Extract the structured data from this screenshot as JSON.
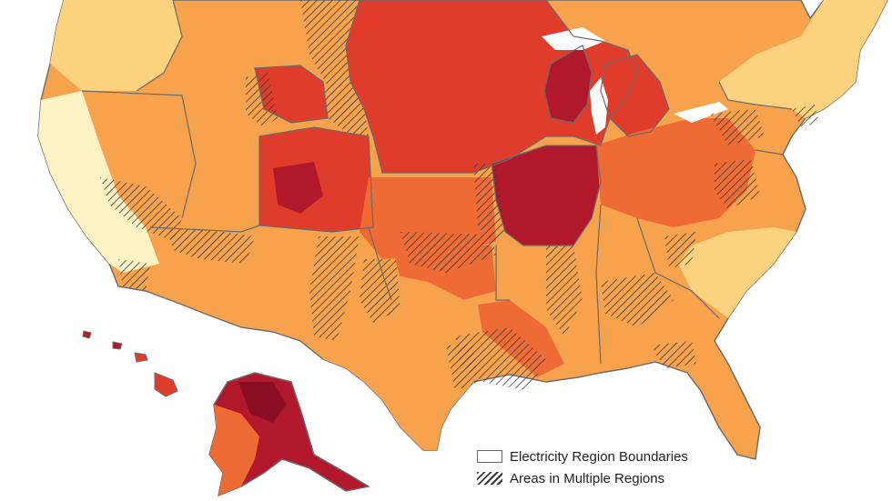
{
  "legend": {
    "boundaries_label": "Electricity Region Boundaries",
    "multiple_regions_label": "Areas in Multiple Regions"
  },
  "colors": {
    "lowest": "#fdf2c4",
    "low": "#fcd27e",
    "mid": "#f7a24c",
    "high": "#ee6b35",
    "higher": "#e03c2c",
    "highest": "#b2182b",
    "darkest": "#8a0f22",
    "boundary": "#6b6b6b",
    "hatch": "#3a3a3a",
    "water": "#ffffff"
  }
}
